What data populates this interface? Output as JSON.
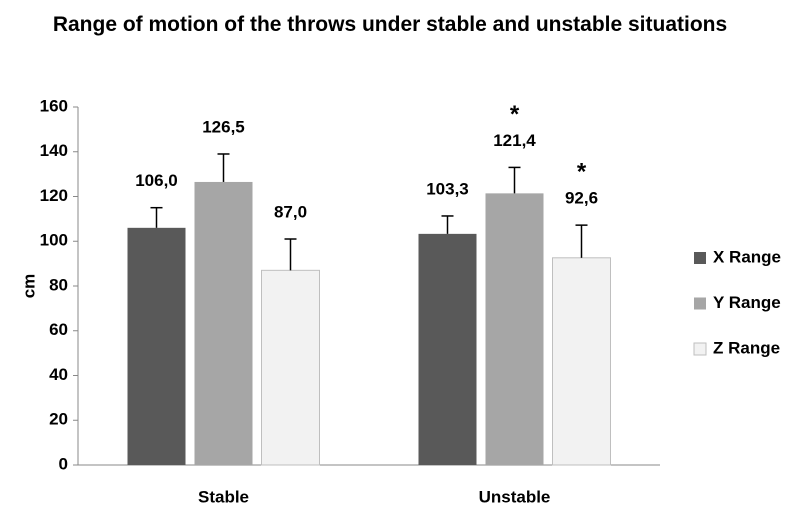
{
  "chart_data": {
    "type": "bar",
    "title": "Range of motion of the throws  under stable and unstable situations",
    "y_label": "cm",
    "categories": [
      "Stable",
      "Unstable"
    ],
    "series": [
      {
        "name": "X Range",
        "color": "#595959",
        "values": [
          106.0,
          103.3
        ],
        "value_labels": [
          "106,0",
          "103,3"
        ],
        "errors": [
          9,
          8
        ],
        "annotations": [
          null,
          null
        ]
      },
      {
        "name": "Y Range",
        "color": "#a6a6a6",
        "values": [
          126.5,
          121.4
        ],
        "value_labels": [
          "126,5",
          "121,4"
        ],
        "errors": [
          12.5,
          11.6
        ],
        "annotations": [
          null,
          "*"
        ]
      },
      {
        "name": "Z Range",
        "color": "#f2f2f2",
        "values": [
          87.0,
          92.6
        ],
        "value_labels": [
          "87,0",
          "92,6"
        ],
        "errors": [
          14,
          14.6
        ],
        "annotations": [
          null,
          "*"
        ]
      }
    ],
    "ylim": [
      0,
      160
    ],
    "yticks": [
      0,
      20,
      40,
      60,
      80,
      100,
      120,
      140,
      160
    ],
    "grid": false,
    "legend": "right"
  }
}
